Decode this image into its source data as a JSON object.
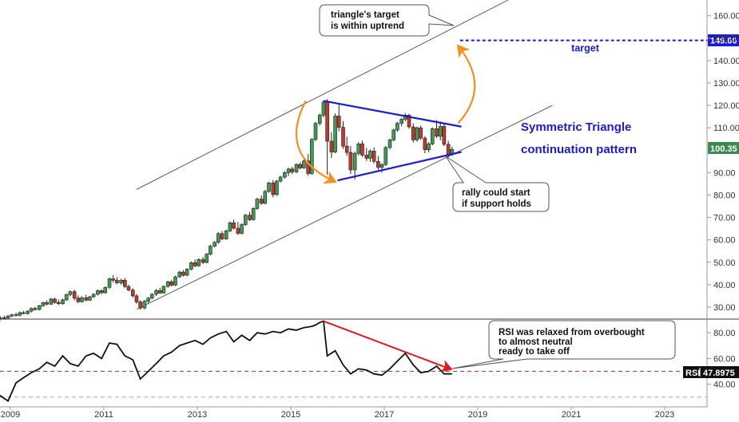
{
  "chart_data": [
    {
      "type": "candlestick",
      "panel": "price",
      "ylim": [
        25,
        167
      ],
      "y_ticks": [
        "30.00",
        "40.00",
        "50.00",
        "60.00",
        "70.00",
        "80.00",
        "90.00",
        "100.00",
        "110.00",
        "120.00",
        "130.00",
        "140.00",
        "150.00",
        "160.00"
      ],
      "x_ticks": [
        "2009",
        "2011",
        "2013",
        "2015",
        "2017",
        "2019",
        "2021",
        "2023"
      ],
      "grid": false,
      "last_price": "100.35",
      "last_value": 100.35,
      "target_label": "target",
      "target_price": "149.00",
      "target_value": 149,
      "pattern_title_line1": "Symmetric Triangle",
      "pattern_title_line2": "continuation pattern",
      "annotations": {
        "triangle_target_line1": "triangle's target",
        "triangle_target_line2": "is within uptrend",
        "rally_line1": "rally could start",
        "rally_line2": "if support holds"
      },
      "candles": [
        {
          "t": 2008.7,
          "o": 24.0,
          "h": 25.5,
          "l": 23.0,
          "c": 24.8
        },
        {
          "t": 2008.78,
          "o": 24.8,
          "h": 26.0,
          "l": 24.0,
          "c": 25.3
        },
        {
          "t": 2008.87,
          "o": 25.3,
          "h": 26.2,
          "l": 24.5,
          "c": 25.0
        },
        {
          "t": 2008.95,
          "o": 25.0,
          "h": 26.5,
          "l": 24.8,
          "c": 26.0
        },
        {
          "t": 2009.03,
          "o": 26.0,
          "h": 27.0,
          "l": 25.5,
          "c": 26.6
        },
        {
          "t": 2009.12,
          "o": 26.6,
          "h": 27.5,
          "l": 25.8,
          "c": 26.3
        },
        {
          "t": 2009.2,
          "o": 26.3,
          "h": 28.0,
          "l": 25.9,
          "c": 27.5
        },
        {
          "t": 2009.28,
          "o": 27.5,
          "h": 28.3,
          "l": 26.8,
          "c": 27.1
        },
        {
          "t": 2009.37,
          "o": 27.1,
          "h": 28.6,
          "l": 26.7,
          "c": 28.2
        },
        {
          "t": 2009.45,
          "o": 28.2,
          "h": 29.8,
          "l": 27.6,
          "c": 29.4
        },
        {
          "t": 2009.53,
          "o": 29.4,
          "h": 30.2,
          "l": 28.4,
          "c": 28.9
        },
        {
          "t": 2009.62,
          "o": 28.9,
          "h": 31.0,
          "l": 28.5,
          "c": 30.6
        },
        {
          "t": 2009.7,
          "o": 30.6,
          "h": 32.4,
          "l": 30.1,
          "c": 32.0
        },
        {
          "t": 2009.78,
          "o": 32.0,
          "h": 33.0,
          "l": 30.8,
          "c": 31.3
        },
        {
          "t": 2009.87,
          "o": 31.3,
          "h": 34.0,
          "l": 31.0,
          "c": 33.6
        },
        {
          "t": 2009.95,
          "o": 33.6,
          "h": 34.2,
          "l": 31.5,
          "c": 32.1
        },
        {
          "t": 2010.03,
          "o": 32.1,
          "h": 33.4,
          "l": 30.9,
          "c": 31.5
        },
        {
          "t": 2010.12,
          "o": 31.5,
          "h": 33.8,
          "l": 31.1,
          "c": 33.2
        },
        {
          "t": 2010.2,
          "o": 33.2,
          "h": 36.0,
          "l": 32.8,
          "c": 35.6
        },
        {
          "t": 2010.28,
          "o": 35.6,
          "h": 37.4,
          "l": 34.8,
          "c": 36.9
        },
        {
          "t": 2010.37,
          "o": 36.9,
          "h": 37.8,
          "l": 33.0,
          "c": 34.0
        },
        {
          "t": 2010.45,
          "o": 34.0,
          "h": 35.2,
          "l": 31.8,
          "c": 32.4
        },
        {
          "t": 2010.53,
          "o": 32.4,
          "h": 34.8,
          "l": 32.0,
          "c": 34.2
        },
        {
          "t": 2010.62,
          "o": 34.2,
          "h": 35.5,
          "l": 32.6,
          "c": 33.1
        },
        {
          "t": 2010.7,
          "o": 33.1,
          "h": 35.0,
          "l": 32.8,
          "c": 34.6
        },
        {
          "t": 2010.78,
          "o": 34.6,
          "h": 36.2,
          "l": 34.0,
          "c": 35.7
        },
        {
          "t": 2010.87,
          "o": 35.7,
          "h": 37.8,
          "l": 35.2,
          "c": 37.3
        },
        {
          "t": 2010.95,
          "o": 37.3,
          "h": 38.0,
          "l": 35.8,
          "c": 36.4
        },
        {
          "t": 2011.03,
          "o": 36.4,
          "h": 39.2,
          "l": 36.0,
          "c": 38.8
        },
        {
          "t": 2011.12,
          "o": 38.8,
          "h": 43.2,
          "l": 38.2,
          "c": 42.6
        },
        {
          "t": 2011.2,
          "o": 42.6,
          "h": 44.2,
          "l": 41.0,
          "c": 42.0
        },
        {
          "t": 2011.28,
          "o": 42.0,
          "h": 43.4,
          "l": 40.2,
          "c": 40.8
        },
        {
          "t": 2011.37,
          "o": 40.8,
          "h": 42.6,
          "l": 40.0,
          "c": 42.0
        },
        {
          "t": 2011.45,
          "o": 42.0,
          "h": 43.0,
          "l": 38.5,
          "c": 39.2
        },
        {
          "t": 2011.53,
          "o": 39.2,
          "h": 40.0,
          "l": 37.0,
          "c": 37.6
        },
        {
          "t": 2011.62,
          "o": 37.6,
          "h": 38.4,
          "l": 34.2,
          "c": 35.0
        },
        {
          "t": 2011.7,
          "o": 35.0,
          "h": 35.8,
          "l": 31.5,
          "c": 32.3
        },
        {
          "t": 2011.78,
          "o": 32.3,
          "h": 33.0,
          "l": 28.8,
          "c": 29.6
        },
        {
          "t": 2011.87,
          "o": 29.6,
          "h": 33.2,
          "l": 29.0,
          "c": 32.6
        },
        {
          "t": 2011.95,
          "o": 32.6,
          "h": 34.5,
          "l": 31.6,
          "c": 34.0
        },
        {
          "t": 2012.03,
          "o": 34.0,
          "h": 36.2,
          "l": 33.4,
          "c": 35.7
        },
        {
          "t": 2012.12,
          "o": 35.7,
          "h": 38.0,
          "l": 35.0,
          "c": 37.4
        },
        {
          "t": 2012.2,
          "o": 37.4,
          "h": 38.6,
          "l": 35.8,
          "c": 36.3
        },
        {
          "t": 2012.28,
          "o": 36.3,
          "h": 39.8,
          "l": 36.0,
          "c": 39.2
        },
        {
          "t": 2012.37,
          "o": 39.2,
          "h": 41.8,
          "l": 38.6,
          "c": 41.3
        },
        {
          "t": 2012.45,
          "o": 41.3,
          "h": 42.2,
          "l": 39.2,
          "c": 39.8
        },
        {
          "t": 2012.53,
          "o": 39.8,
          "h": 44.0,
          "l": 39.4,
          "c": 43.5
        },
        {
          "t": 2012.62,
          "o": 43.5,
          "h": 46.2,
          "l": 43.0,
          "c": 45.6
        },
        {
          "t": 2012.7,
          "o": 45.6,
          "h": 46.5,
          "l": 43.6,
          "c": 44.2
        },
        {
          "t": 2012.78,
          "o": 44.2,
          "h": 47.4,
          "l": 43.8,
          "c": 46.9
        },
        {
          "t": 2012.87,
          "o": 46.9,
          "h": 50.4,
          "l": 46.4,
          "c": 49.8
        },
        {
          "t": 2012.95,
          "o": 49.8,
          "h": 51.2,
          "l": 47.8,
          "c": 48.4
        },
        {
          "t": 2013.03,
          "o": 48.4,
          "h": 51.8,
          "l": 48.0,
          "c": 51.2
        },
        {
          "t": 2013.12,
          "o": 51.2,
          "h": 52.4,
          "l": 49.2,
          "c": 49.9
        },
        {
          "t": 2013.2,
          "o": 49.9,
          "h": 54.2,
          "l": 49.5,
          "c": 53.6
        },
        {
          "t": 2013.28,
          "o": 53.6,
          "h": 57.8,
          "l": 53.0,
          "c": 57.2
        },
        {
          "t": 2013.37,
          "o": 57.2,
          "h": 59.4,
          "l": 56.6,
          "c": 58.9
        },
        {
          "t": 2013.45,
          "o": 58.9,
          "h": 63.4,
          "l": 58.2,
          "c": 62.8
        },
        {
          "t": 2013.53,
          "o": 62.8,
          "h": 64.0,
          "l": 59.8,
          "c": 60.4
        },
        {
          "t": 2013.62,
          "o": 60.4,
          "h": 64.6,
          "l": 60.0,
          "c": 64.0
        },
        {
          "t": 2013.7,
          "o": 64.0,
          "h": 68.2,
          "l": 63.4,
          "c": 67.6
        },
        {
          "t": 2013.78,
          "o": 67.6,
          "h": 69.0,
          "l": 64.6,
          "c": 65.2
        },
        {
          "t": 2013.87,
          "o": 65.2,
          "h": 68.0,
          "l": 62.2,
          "c": 62.9
        },
        {
          "t": 2013.95,
          "o": 62.9,
          "h": 67.4,
          "l": 62.4,
          "c": 66.8
        },
        {
          "t": 2014.03,
          "o": 66.8,
          "h": 71.6,
          "l": 66.2,
          "c": 71.0
        },
        {
          "t": 2014.12,
          "o": 71.0,
          "h": 72.4,
          "l": 68.4,
          "c": 69.0
        },
        {
          "t": 2014.2,
          "o": 69.0,
          "h": 74.6,
          "l": 68.6,
          "c": 74.0
        },
        {
          "t": 2014.28,
          "o": 74.0,
          "h": 78.8,
          "l": 73.4,
          "c": 78.2
        },
        {
          "t": 2014.37,
          "o": 78.2,
          "h": 79.8,
          "l": 75.6,
          "c": 76.3
        },
        {
          "t": 2014.45,
          "o": 76.3,
          "h": 82.2,
          "l": 75.8,
          "c": 81.6
        },
        {
          "t": 2014.53,
          "o": 81.6,
          "h": 86.0,
          "l": 81.0,
          "c": 85.4
        },
        {
          "t": 2014.62,
          "o": 85.4,
          "h": 86.6,
          "l": 79.0,
          "c": 80.2
        },
        {
          "t": 2014.7,
          "o": 80.2,
          "h": 86.8,
          "l": 79.6,
          "c": 86.2
        },
        {
          "t": 2014.78,
          "o": 86.2,
          "h": 88.6,
          "l": 85.6,
          "c": 88.0
        },
        {
          "t": 2014.87,
          "o": 88.0,
          "h": 90.6,
          "l": 87.2,
          "c": 90.0
        },
        {
          "t": 2014.95,
          "o": 90.0,
          "h": 92.2,
          "l": 88.4,
          "c": 91.6
        },
        {
          "t": 2015.03,
          "o": 91.6,
          "h": 92.6,
          "l": 89.4,
          "c": 90.3
        },
        {
          "t": 2015.12,
          "o": 90.3,
          "h": 94.2,
          "l": 89.8,
          "c": 93.6
        },
        {
          "t": 2015.2,
          "o": 93.6,
          "h": 94.6,
          "l": 91.4,
          "c": 92.1
        },
        {
          "t": 2015.28,
          "o": 92.1,
          "h": 95.8,
          "l": 91.6,
          "c": 95.2
        },
        {
          "t": 2015.37,
          "o": 95.2,
          "h": 98.2,
          "l": 88.6,
          "c": 89.6
        },
        {
          "t": 2015.45,
          "o": 89.6,
          "h": 105.4,
          "l": 89.0,
          "c": 104.8
        },
        {
          "t": 2015.53,
          "o": 104.8,
          "h": 112.6,
          "l": 104.0,
          "c": 112.0
        },
        {
          "t": 2015.62,
          "o": 112.0,
          "h": 116.4,
          "l": 111.0,
          "c": 115.6
        },
        {
          "t": 2015.7,
          "o": 115.6,
          "h": 122.2,
          "l": 114.6,
          "c": 121.5
        },
        {
          "t": 2015.78,
          "o": 121.5,
          "h": 122.8,
          "l": 89.0,
          "c": 104.0
        },
        {
          "t": 2015.87,
          "o": 104.0,
          "h": 108.0,
          "l": 96.5,
          "c": 99.2
        },
        {
          "t": 2015.95,
          "o": 99.2,
          "h": 116.4,
          "l": 98.6,
          "c": 115.2
        },
        {
          "t": 2016.03,
          "o": 115.2,
          "h": 120.6,
          "l": 108.4,
          "c": 110.2
        },
        {
          "t": 2016.12,
          "o": 110.2,
          "h": 113.0,
          "l": 100.6,
          "c": 101.8
        },
        {
          "t": 2016.2,
          "o": 101.8,
          "h": 106.0,
          "l": 97.4,
          "c": 99.0
        },
        {
          "t": 2016.28,
          "o": 99.0,
          "h": 101.8,
          "l": 89.4,
          "c": 91.2
        },
        {
          "t": 2016.37,
          "o": 91.2,
          "h": 99.4,
          "l": 87.0,
          "c": 98.6
        },
        {
          "t": 2016.45,
          "o": 98.6,
          "h": 103.6,
          "l": 97.6,
          "c": 102.8
        },
        {
          "t": 2016.53,
          "o": 102.8,
          "h": 104.2,
          "l": 97.0,
          "c": 97.8
        },
        {
          "t": 2016.62,
          "o": 97.8,
          "h": 101.0,
          "l": 95.2,
          "c": 96.4
        },
        {
          "t": 2016.7,
          "o": 96.4,
          "h": 100.4,
          "l": 94.8,
          "c": 99.6
        },
        {
          "t": 2016.78,
          "o": 99.6,
          "h": 101.2,
          "l": 94.0,
          "c": 95.0
        },
        {
          "t": 2016.87,
          "o": 95.0,
          "h": 97.4,
          "l": 91.2,
          "c": 92.3
        },
        {
          "t": 2016.95,
          "o": 92.3,
          "h": 94.2,
          "l": 90.0,
          "c": 93.6
        },
        {
          "t": 2017.03,
          "o": 93.6,
          "h": 101.8,
          "l": 93.0,
          "c": 101.2
        },
        {
          "t": 2017.12,
          "o": 101.2,
          "h": 105.2,
          "l": 100.4,
          "c": 104.6
        },
        {
          "t": 2017.2,
          "o": 104.6,
          "h": 109.6,
          "l": 104.0,
          "c": 109.0
        },
        {
          "t": 2017.28,
          "o": 109.0,
          "h": 112.6,
          "l": 108.2,
          "c": 112.0
        },
        {
          "t": 2017.37,
          "o": 112.0,
          "h": 114.4,
          "l": 110.6,
          "c": 113.8
        },
        {
          "t": 2017.45,
          "o": 113.8,
          "h": 116.6,
          "l": 112.8,
          "c": 115.6
        },
        {
          "t": 2017.53,
          "o": 115.6,
          "h": 116.2,
          "l": 109.6,
          "c": 110.4
        },
        {
          "t": 2017.62,
          "o": 110.4,
          "h": 112.0,
          "l": 103.4,
          "c": 104.6
        },
        {
          "t": 2017.7,
          "o": 104.6,
          "h": 110.6,
          "l": 103.8,
          "c": 110.0
        },
        {
          "t": 2017.78,
          "o": 110.0,
          "h": 111.0,
          "l": 104.6,
          "c": 105.4
        },
        {
          "t": 2017.87,
          "o": 105.4,
          "h": 106.2,
          "l": 98.6,
          "c": 100.2
        },
        {
          "t": 2017.95,
          "o": 100.2,
          "h": 103.6,
          "l": 99.0,
          "c": 102.8
        },
        {
          "t": 2018.03,
          "o": 102.8,
          "h": 110.2,
          "l": 102.2,
          "c": 109.6
        },
        {
          "t": 2018.12,
          "o": 109.6,
          "h": 113.4,
          "l": 105.4,
          "c": 106.2
        },
        {
          "t": 2018.2,
          "o": 106.2,
          "h": 112.8,
          "l": 104.4,
          "c": 110.6
        },
        {
          "t": 2018.28,
          "o": 110.6,
          "h": 112.0,
          "l": 101.8,
          "c": 102.6
        },
        {
          "t": 2018.37,
          "o": 102.6,
          "h": 104.2,
          "l": 96.8,
          "c": 98.2
        },
        {
          "t": 2018.45,
          "o": 98.2,
          "h": 101.6,
          "l": 97.4,
          "c": 100.35
        }
      ]
    },
    {
      "type": "line",
      "panel": "rsi",
      "ylim": [
        23,
        90
      ],
      "y_ticks": [
        "40.00",
        "60.00",
        "80.00"
      ],
      "indicator_label": "RSI",
      "last_value_label": "47.8975",
      "last_value": 47.8975,
      "reference_lines": [
        50,
        30
      ],
      "annotation_line1": "RSI was relaxed from overbought",
      "annotation_line2": "to almost neutral",
      "annotation_line3": "ready to take off",
      "x": [
        2008.7,
        2008.95,
        2009.12,
        2009.28,
        2009.45,
        2009.62,
        2009.78,
        2009.95,
        2010.12,
        2010.28,
        2010.45,
        2010.62,
        2010.78,
        2010.95,
        2011.12,
        2011.28,
        2011.45,
        2011.62,
        2011.78,
        2011.95,
        2012.12,
        2012.28,
        2012.45,
        2012.62,
        2012.78,
        2012.95,
        2013.12,
        2013.28,
        2013.45,
        2013.62,
        2013.78,
        2013.95,
        2014.12,
        2014.28,
        2014.45,
        2014.62,
        2014.78,
        2014.95,
        2015.12,
        2015.28,
        2015.45,
        2015.53,
        2015.62,
        2015.7,
        2015.78,
        2015.95,
        2016.12,
        2016.28,
        2016.45,
        2016.62,
        2016.78,
        2016.95,
        2017.12,
        2017.28,
        2017.45,
        2017.62,
        2017.78,
        2017.95,
        2018.12,
        2018.28,
        2018.45
      ],
      "values": [
        33,
        27,
        41,
        45,
        49,
        52,
        57,
        54,
        62,
        56,
        54,
        62,
        64,
        60,
        72,
        71,
        62,
        59,
        44,
        50,
        56,
        62,
        65,
        70,
        72,
        74,
        71,
        76,
        79,
        81,
        73,
        78,
        74,
        80,
        79,
        81,
        80,
        83,
        82,
        84,
        85,
        86,
        88,
        89,
        62,
        66,
        55,
        48,
        52,
        51,
        48,
        47,
        52,
        58,
        64,
        55,
        49,
        50,
        54,
        48,
        48
      ]
    }
  ]
}
